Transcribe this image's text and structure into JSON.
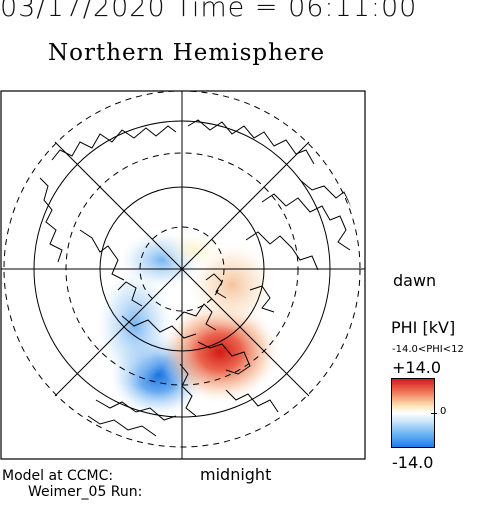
{
  "header": {
    "datetime": "03/17/2020 Time = 06:11:00",
    "hemisphere": "Northern Hemisphere"
  },
  "labels": {
    "dawn": "dawn",
    "midnight": "midnight",
    "model_line1": "Model at CCMC:",
    "model_line2": "Weimer_05 Run:"
  },
  "colorbar": {
    "title": "PHI [kV]",
    "range_text": "-14.0<PHI<12",
    "max_label": "+14.0",
    "min_label": "-14.0",
    "zero_label": "0",
    "colors": {
      "positive": "#d81818",
      "zero": "#ffffff",
      "negative": "#1d80e8"
    }
  },
  "map": {
    "projection": "polar",
    "grid_lines": true,
    "circle_styles": [
      "dashed",
      "solid",
      "dashed",
      "solid",
      "dashed"
    ]
  }
}
